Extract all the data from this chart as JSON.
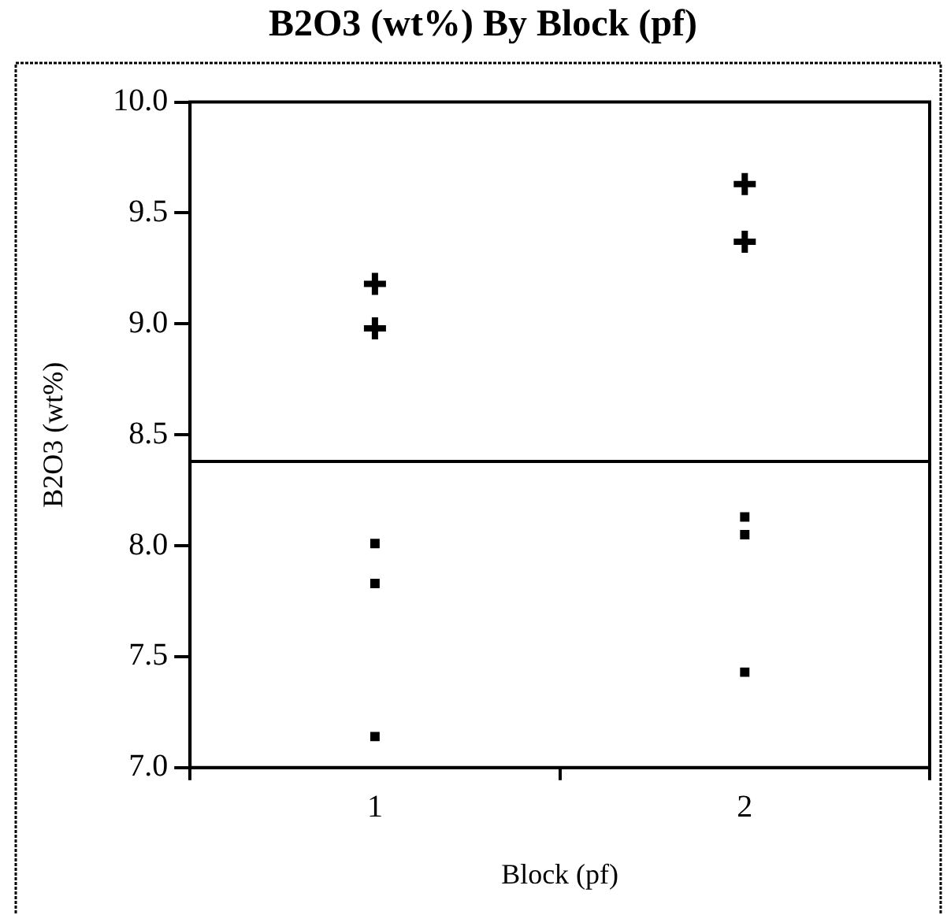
{
  "chart_data": {
    "type": "scatter",
    "title": "B2O3 (wt%) By Block (pf)",
    "xlabel": "Block (pf)",
    "ylabel": "B2O3 (wt%)",
    "categories": [
      "1",
      "2"
    ],
    "series": [
      {
        "color": "#000000",
        "marker": "cross",
        "x": [
          "1",
          "1",
          "2",
          "2"
        ],
        "values": [
          9.18,
          8.98,
          9.63,
          9.37
        ]
      },
      {
        "color": "#000000",
        "marker": "square",
        "x": [
          "1",
          "1",
          "1",
          "2",
          "2",
          "2"
        ],
        "values": [
          8.01,
          7.83,
          7.14,
          8.13,
          8.05,
          7.43
        ]
      }
    ],
    "ylim": [
      7,
      10
    ],
    "yticks": [
      {
        "value": 7,
        "label": "7.0"
      },
      {
        "value": 7.5,
        "label": "7.5"
      },
      {
        "value": 8,
        "label": "8.0"
      },
      {
        "value": 8.5,
        "label": "8.5"
      },
      {
        "value": 9,
        "label": "9.0"
      },
      {
        "value": 9.5,
        "label": "9.5"
      },
      {
        "value": 10,
        "label": "10.0"
      }
    ],
    "ref_lines": [
      {
        "axis": "y",
        "value": 8.38,
        "color": "#000000"
      }
    ],
    "grid": false,
    "legend": false
  }
}
